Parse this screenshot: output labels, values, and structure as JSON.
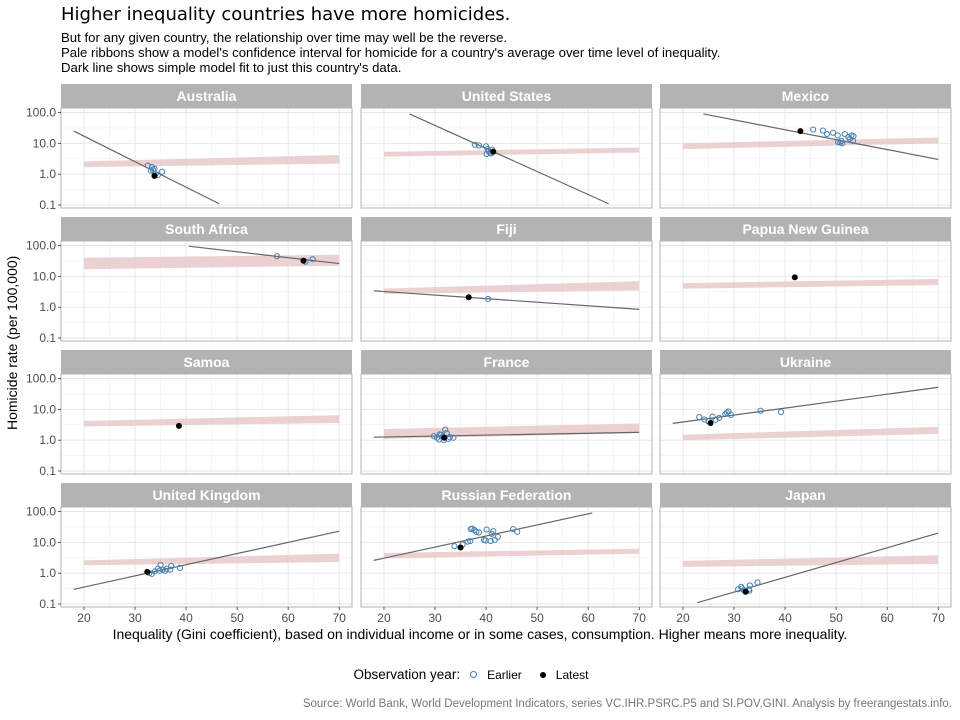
{
  "title": "Higher inequality countries have more homicides.",
  "subtitle": [
    "But for any given country, the relationship over time may well be the reverse.",
    "Pale ribbons show a model's confidence interval for homicide for a country's average over time level of inequality.",
    "Dark line shows simple model fit to just this country's data."
  ],
  "caption": "Source: World Bank, World Development Indicators, series VC.IHR.PSRC.P5 and SI.POV.GINI. Analysis by freerangestats.info.",
  "colors": {
    "earlier": "#4682b4",
    "latest": "#000000",
    "ribbon": "#e7c9c9",
    "fit_line": "#666666",
    "strip": "#b3b3b3"
  },
  "chart_data": {
    "type": "scatter",
    "facet": "wrap-4x3",
    "xlabel": "Inequality (Gini coefficient), based on individual income or in some cases, consumption. Higher means more inequality.",
    "ylabel": "Homicide rate (per 100,000)",
    "yscale": "log10",
    "xlim": [
      15.5,
      72.5
    ],
    "ylim": [
      0.08,
      140
    ],
    "xticks": [
      20,
      30,
      40,
      50,
      60,
      70
    ],
    "xtick_labels": [
      "20",
      "30",
      "40",
      "50",
      "60",
      "70"
    ],
    "yticks": [
      100,
      10,
      1,
      0.1
    ],
    "ytick_labels": [
      "100.0",
      "10.0",
      "1.0",
      "0.1"
    ],
    "grid": true,
    "legend": {
      "title": "Observation year:",
      "position": "bottom",
      "entries": [
        {
          "label": "Earlier",
          "key": "earlier"
        },
        {
          "label": "Latest",
          "key": "latest"
        }
      ]
    },
    "panels": [
      {
        "name": "Australia",
        "ribbon": {
          "x": [
            20,
            70
          ],
          "lo": [
            1.7,
            2.2
          ],
          "hi": [
            2.6,
            4.2
          ]
        },
        "fit": {
          "x": [
            18,
            46.5
          ],
          "y": [
            25,
            0.11
          ]
        },
        "earlier": [
          [
            32.5,
            1.9
          ],
          [
            33.3,
            1.7
          ],
          [
            33.5,
            1.4
          ],
          [
            33.1,
            1.3
          ],
          [
            34.0,
            1.0
          ],
          [
            34.5,
            0.95
          ],
          [
            35.3,
            1.2
          ],
          [
            33.8,
            1.5
          ]
        ],
        "latest": [
          [
            33.8,
            0.88
          ]
        ]
      },
      {
        "name": "United States",
        "ribbon": {
          "x": [
            20,
            70
          ],
          "lo": [
            3.7,
            5.0
          ],
          "hi": [
            5.3,
            7.3
          ]
        },
        "fit": {
          "x": [
            25,
            64
          ],
          "y": [
            90,
            0.11
          ]
        },
        "earlier": [
          [
            37.8,
            9.0
          ],
          [
            38.6,
            8.5
          ],
          [
            40.0,
            8.0
          ],
          [
            40.3,
            6.5
          ],
          [
            40.5,
            5.6
          ],
          [
            40.8,
            5.0
          ],
          [
            41.0,
            4.7
          ],
          [
            40.1,
            4.5
          ],
          [
            41.2,
            6.2
          ]
        ],
        "latest": [
          [
            41.4,
            5.4
          ]
        ]
      },
      {
        "name": "Mexico",
        "ribbon": {
          "x": [
            20,
            70
          ],
          "lo": [
            6.5,
            10.0
          ],
          "hi": [
            10.0,
            15.5
          ]
        },
        "fit": {
          "x": [
            24,
            70
          ],
          "y": [
            90,
            3.0
          ]
        },
        "earlier": [
          [
            45.5,
            28
          ],
          [
            47.4,
            26
          ],
          [
            48.2,
            20
          ],
          [
            49.4,
            22
          ],
          [
            50.3,
            18
          ],
          [
            51.7,
            20
          ],
          [
            50.4,
            11
          ],
          [
            50.8,
            10.5
          ],
          [
            51.0,
            12
          ],
          [
            51.2,
            10.0
          ],
          [
            52.4,
            16
          ],
          [
            53.0,
            18
          ],
          [
            53.4,
            17
          ],
          [
            53.3,
            12
          ],
          [
            52.7,
            14
          ]
        ],
        "latest": [
          [
            43.0,
            25
          ]
        ]
      },
      {
        "name": "South Africa",
        "ribbon": {
          "x": [
            20,
            70
          ],
          "lo": [
            17,
            22
          ],
          "hi": [
            40,
            50
          ]
        },
        "fit": {
          "x": [
            40.5,
            70
          ],
          "y": [
            95,
            26
          ]
        },
        "earlier": [
          [
            57.8,
            45
          ],
          [
            63.4,
            30
          ],
          [
            64.8,
            36
          ]
        ],
        "latest": [
          [
            63.0,
            32
          ]
        ]
      },
      {
        "name": "Fiji",
        "ribbon": {
          "x": [
            20,
            70
          ],
          "lo": [
            2.7,
            3.5
          ],
          "hi": [
            4.0,
            7.0
          ]
        },
        "fit": {
          "x": [
            18,
            70
          ],
          "y": [
            3.4,
            0.85
          ]
        },
        "earlier": [
          [
            40.4,
            1.85
          ]
        ],
        "latest": [
          [
            36.6,
            2.1
          ]
        ]
      },
      {
        "name": "Papua New Guinea",
        "ribbon": {
          "x": [
            20,
            70
          ],
          "lo": [
            4.0,
            5.2
          ],
          "hi": [
            6.0,
            8.2
          ]
        },
        "fit": null,
        "earlier": [],
        "latest": [
          [
            41.9,
            9.3
          ]
        ]
      },
      {
        "name": "Samoa",
        "ribbon": {
          "x": [
            20,
            70
          ],
          "lo": [
            2.8,
            3.6
          ],
          "hi": [
            4.2,
            6.5
          ]
        },
        "fit": null,
        "earlier": [],
        "latest": [
          [
            38.6,
            2.9
          ]
        ]
      },
      {
        "name": "France",
        "ribbon": {
          "x": [
            20,
            70
          ],
          "lo": [
            1.1,
            1.7
          ],
          "hi": [
            2.3,
            3.5
          ]
        },
        "fit": {
          "x": [
            18,
            70
          ],
          "y": [
            1.25,
            1.8
          ]
        },
        "earlier": [
          [
            29.8,
            1.35
          ],
          [
            30.4,
            1.2
          ],
          [
            30.8,
            1.05
          ],
          [
            31.2,
            1.5
          ],
          [
            31.5,
            1.3
          ],
          [
            32.0,
            2.2
          ],
          [
            32.3,
            1.7
          ],
          [
            32.6,
            1.1
          ],
          [
            32.9,
            1.25
          ],
          [
            33.6,
            1.2
          ],
          [
            31.7,
            1.0
          ],
          [
            30.9,
            1.55
          ]
        ],
        "latest": [
          [
            31.8,
            1.2
          ]
        ]
      },
      {
        "name": "Ukraine",
        "ribbon": {
          "x": [
            20,
            70
          ],
          "lo": [
            1.0,
            1.6
          ],
          "hi": [
            1.5,
            2.7
          ]
        },
        "fit": {
          "x": [
            18,
            70
          ],
          "y": [
            3.5,
            52
          ]
        },
        "earlier": [
          [
            23.2,
            5.6
          ],
          [
            24.2,
            4.7
          ],
          [
            25.0,
            4.1
          ],
          [
            25.8,
            5.8
          ],
          [
            26.4,
            4.6
          ],
          [
            27.1,
            5.3
          ],
          [
            28.6,
            7.8
          ],
          [
            28.9,
            8.5
          ],
          [
            29.4,
            6.6
          ],
          [
            28.3,
            7.0
          ],
          [
            35.2,
            9.0
          ],
          [
            39.2,
            8.2
          ]
        ],
        "latest": [
          [
            25.4,
            3.6
          ]
        ]
      },
      {
        "name": "United Kingdom",
        "ribbon": {
          "x": [
            20,
            70
          ],
          "lo": [
            1.8,
            2.3
          ],
          "hi": [
            2.6,
            4.3
          ]
        },
        "fit": {
          "x": [
            18,
            70
          ],
          "y": [
            0.3,
            23
          ]
        },
        "earlier": [
          [
            32.8,
            1.0
          ],
          [
            33.3,
            0.95
          ],
          [
            33.9,
            1.15
          ],
          [
            34.5,
            1.4
          ],
          [
            35.0,
            1.85
          ],
          [
            35.4,
            1.3
          ],
          [
            35.9,
            1.2
          ],
          [
            36.2,
            1.4
          ],
          [
            36.9,
            1.3
          ],
          [
            37.1,
            1.7
          ],
          [
            38.8,
            1.5
          ],
          [
            34.8,
            1.2
          ]
        ],
        "latest": [
          [
            32.4,
            1.1
          ]
        ]
      },
      {
        "name": "Russian Federation",
        "ribbon": {
          "x": [
            20,
            70
          ],
          "lo": [
            3.0,
            4.3
          ],
          "hi": [
            4.5,
            6.2
          ]
        },
        "fit": {
          "x": [
            18,
            60.8
          ],
          "y": [
            2.6,
            90
          ]
        },
        "earlier": [
          [
            33.8,
            7.5
          ],
          [
            35.4,
            8.5
          ],
          [
            36.4,
            10.5
          ],
          [
            36.9,
            11
          ],
          [
            37.0,
            27
          ],
          [
            37.3,
            28
          ],
          [
            37.7,
            25
          ],
          [
            38.1,
            22
          ],
          [
            38.6,
            21
          ],
          [
            39.6,
            12
          ],
          [
            39.9,
            11.5
          ],
          [
            40.1,
            26
          ],
          [
            40.9,
            11
          ],
          [
            41.1,
            19
          ],
          [
            41.4,
            23
          ],
          [
            41.7,
            12
          ],
          [
            42.3,
            15
          ],
          [
            45.3,
            27
          ],
          [
            46.1,
            22
          ]
        ],
        "latest": [
          [
            35.0,
            6.8
          ]
        ]
      },
      {
        "name": "Japan",
        "ribbon": {
          "x": [
            20,
            70
          ],
          "lo": [
            1.6,
            2.0
          ],
          "hi": [
            2.5,
            3.8
          ]
        },
        "fit": {
          "x": [
            22.8,
            70
          ],
          "y": [
            0.11,
            20
          ]
        },
        "earlier": [
          [
            30.8,
            0.3
          ],
          [
            31.4,
            0.36
          ],
          [
            31.9,
            0.28
          ],
          [
            32.2,
            0.25
          ],
          [
            32.9,
            0.3
          ],
          [
            33.1,
            0.4
          ],
          [
            33.0,
            0.27
          ],
          [
            34.6,
            0.5
          ],
          [
            31.6,
            0.32
          ]
        ],
        "latest": [
          [
            32.3,
            0.25
          ]
        ]
      }
    ]
  }
}
